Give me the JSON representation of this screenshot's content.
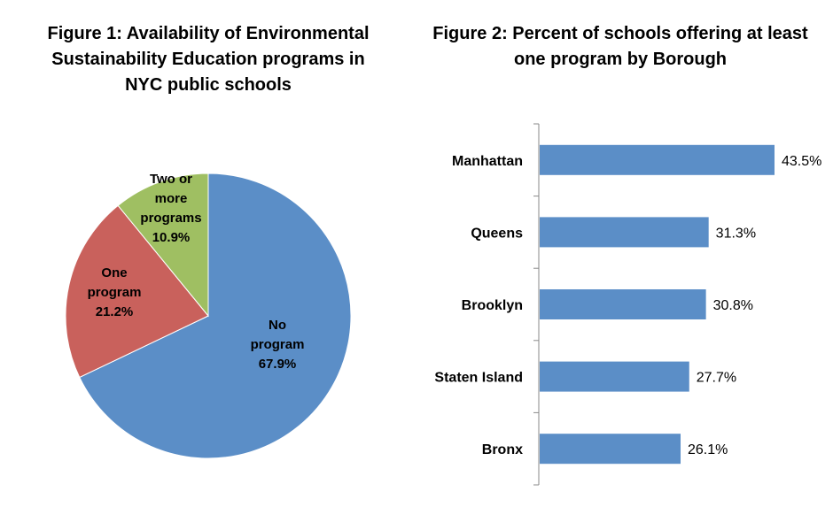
{
  "chart_data": [
    {
      "type": "pie",
      "title": "Figure 1: Availability of Environmental Sustainability Education programs in NYC public schools",
      "slices": [
        {
          "label_lines": [
            "No",
            "program",
            "67.9%"
          ],
          "label": "No program",
          "value": 67.9,
          "color": "#5b8ec7"
        },
        {
          "label_lines": [
            "One",
            "program",
            "21.2%"
          ],
          "label": "One program",
          "value": 21.2,
          "color": "#c9615c"
        },
        {
          "label_lines": [
            "Two or",
            "more",
            "programs",
            "10.9%"
          ],
          "label": "Two or more programs",
          "value": 10.9,
          "color": "#9fbf62"
        }
      ]
    },
    {
      "type": "bar",
      "orientation": "horizontal",
      "title": "Figure 2: Percent of schools offering at least one program by Borough",
      "categories": [
        "Manhattan",
        "Queens",
        "Brooklyn",
        "Staten Island",
        "Bronx"
      ],
      "values": [
        43.5,
        31.3,
        30.8,
        27.7,
        26.1
      ],
      "value_labels": [
        "43.5%",
        "31.3%",
        "30.8%",
        "27.7%",
        "26.1%"
      ],
      "color": "#5b8ec7",
      "xlim": [
        0,
        43.5
      ]
    }
  ]
}
